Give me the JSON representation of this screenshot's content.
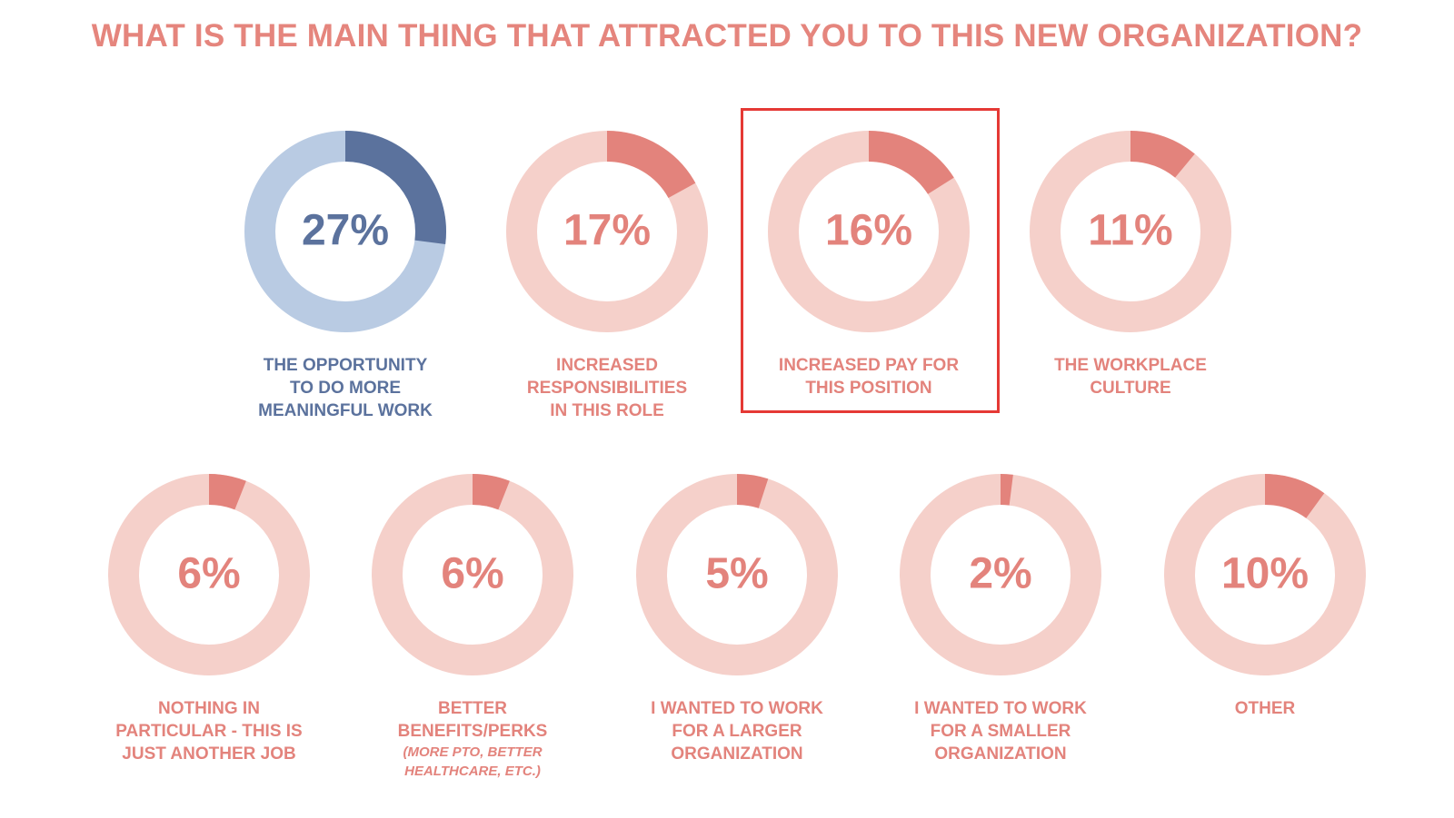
{
  "title": "WHAT IS THE MAIN THING THAT ATTRACTED YOU TO THIS NEW ORGANIZATION?",
  "colors": {
    "title": "#e5857d",
    "blue_dark": "#5b729d",
    "blue_light": "#b9cbe3",
    "red_dark": "#e3837c",
    "red_light": "#f5d0ca",
    "highlight_border": "#e53935"
  },
  "chart_data": {
    "type": "pie",
    "title": "WHAT IS THE MAIN THING THAT ATTRACTED YOU TO THIS NEW ORGANIZATION?",
    "unit": "%",
    "items": [
      {
        "label": "THE OPPORTUNITY TO DO MORE MEANINGFUL WORK",
        "value": 27,
        "value_label": "27%",
        "color_scheme": "blue",
        "highlighted": false,
        "sub_label": ""
      },
      {
        "label": "INCREASED RESPONSIBILITIES IN THIS ROLE",
        "value": 17,
        "value_label": "17%",
        "color_scheme": "red",
        "highlighted": false,
        "sub_label": ""
      },
      {
        "label": "INCREASED PAY FOR THIS POSITION",
        "value": 16,
        "value_label": "16%",
        "color_scheme": "red",
        "highlighted": true,
        "sub_label": ""
      },
      {
        "label": "THE WORKPLACE CULTURE",
        "value": 11,
        "value_label": "11%",
        "color_scheme": "red",
        "highlighted": false,
        "sub_label": ""
      },
      {
        "label": "NOTHING IN PARTICULAR - THIS IS JUST ANOTHER JOB",
        "value": 6,
        "value_label": "6%",
        "color_scheme": "red",
        "highlighted": false,
        "sub_label": ""
      },
      {
        "label": "BETTER BENEFITS/PERKS",
        "value": 6,
        "value_label": "6%",
        "color_scheme": "red",
        "highlighted": false,
        "sub_label": "(MORE PTO, BETTER HEALTHCARE, ETC.)"
      },
      {
        "label": "I WANTED TO WORK FOR A LARGER ORGANIZATION",
        "value": 5,
        "value_label": "5%",
        "color_scheme": "red",
        "highlighted": false,
        "sub_label": ""
      },
      {
        "label": "I WANTED TO WORK FOR A SMALLER ORGANIZATION",
        "value": 2,
        "value_label": "2%",
        "color_scheme": "red",
        "highlighted": false,
        "sub_label": ""
      },
      {
        "label": "OTHER",
        "value": 10,
        "value_label": "10%",
        "color_scheme": "red",
        "highlighted": false,
        "sub_label": ""
      }
    ]
  }
}
